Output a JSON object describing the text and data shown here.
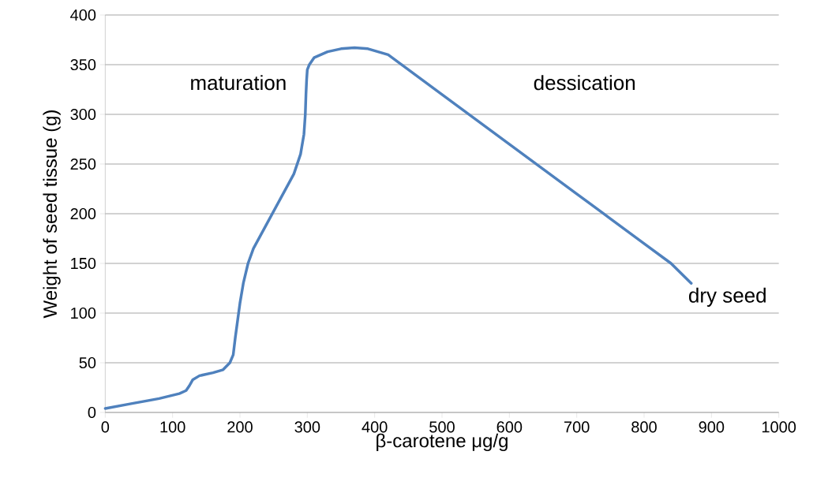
{
  "chart_data": {
    "type": "line",
    "xlabel": "β-carotene μg/g",
    "ylabel": "Weight of seed tissue (g)",
    "series": [
      {
        "color": "#4f81bd",
        "x": [
          0,
          40,
          80,
          110,
          120,
          125,
          130,
          140,
          160,
          175,
          185,
          190,
          193,
          197,
          200,
          205,
          212,
          220,
          240,
          260,
          280,
          290,
          295,
          297,
          298,
          299,
          300,
          303,
          310,
          330,
          350,
          370,
          390,
          420,
          460,
          500,
          550,
          600,
          650,
          700,
          750,
          800,
          840,
          870
        ],
        "values": [
          4,
          9,
          14,
          19,
          22,
          27,
          33,
          37,
          40,
          43,
          50,
          58,
          75,
          95,
          110,
          130,
          150,
          165,
          190,
          215,
          240,
          260,
          280,
          300,
          320,
          335,
          345,
          350,
          357,
          363,
          366,
          367,
          366,
          360,
          340,
          320,
          295,
          270,
          245,
          220,
          195,
          170,
          150,
          130
        ]
      }
    ],
    "xlim": [
      0,
      1000
    ],
    "ylim": [
      0,
      400
    ],
    "xticks": [
      0,
      100,
      200,
      300,
      400,
      500,
      600,
      700,
      800,
      900,
      1000
    ],
    "yticks": [
      0,
      50,
      100,
      150,
      200,
      250,
      300,
      350,
      400
    ],
    "grid": "y",
    "marker": "none",
    "line_style": "solid",
    "annotations": [
      "maturation",
      "dessication",
      "dry seed"
    ]
  }
}
